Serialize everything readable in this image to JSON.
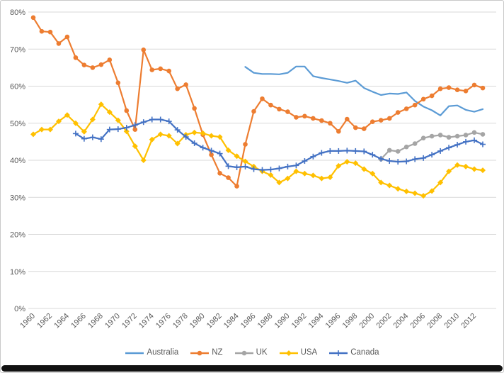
{
  "figure": {
    "background": "#ffffff",
    "border_color": "#c9c9c9",
    "bottom_bar_color": "#121212",
    "gridline_color": "#d9d9d9",
    "tick_label_color": "#595959"
  },
  "chart_data": {
    "type": "line",
    "title": "",
    "xlabel": "",
    "ylabel": "",
    "ylim": [
      0,
      80
    ],
    "y_tick_step": 10,
    "y_tick_labels": [
      "0%",
      "10%",
      "20%",
      "30%",
      "40%",
      "50%",
      "60%",
      "70%",
      "80%"
    ],
    "x_range": [
      1960,
      2013
    ],
    "x_tick_labels": [
      "1960",
      "1962",
      "1964",
      "1966",
      "1968",
      "1970",
      "1972",
      "1974",
      "1976",
      "1978",
      "1980",
      "1982",
      "1984",
      "1986",
      "1988",
      "1990",
      "1992",
      "1994",
      "1996",
      "1998",
      "2000",
      "2002",
      "2004",
      "2006",
      "2008",
      "2010",
      "2012"
    ],
    "grid": true,
    "legend_position": "bottom",
    "series": [
      {
        "name": "Australia",
        "color": "#5B9BD5",
        "marker": "none",
        "start_year": 1985,
        "values": [
          65.2,
          63.6,
          63.3,
          63.3,
          63.2,
          63.6,
          65.3,
          65.3,
          62.7,
          62.2,
          61.8,
          61.4,
          60.9,
          61.5,
          59.5,
          58.5,
          57.6,
          58.0,
          57.9,
          58.3,
          56.0,
          54.5,
          53.5,
          52.1,
          54.6,
          54.8,
          53.6,
          53.1,
          53.8
        ]
      },
      {
        "name": "NZ",
        "color": "#ED7D31",
        "marker": "circle",
        "start_year": 1960,
        "values": [
          78.5,
          74.8,
          74.6,
          71.5,
          73.3,
          67.7,
          65.7,
          65.0,
          65.8,
          67.1,
          60.9,
          53.4,
          48.3,
          69.8,
          64.4,
          64.7,
          64.1,
          59.3,
          60.4,
          54.0,
          46.9,
          41.5,
          36.5,
          35.3,
          33.0,
          44.3,
          53.2,
          56.6,
          54.9,
          53.8,
          53.1,
          51.6,
          51.9,
          51.3,
          50.7,
          50.0,
          47.8,
          51.1,
          48.8,
          48.5,
          50.4,
          50.8,
          51.3,
          52.9,
          53.9,
          54.9,
          56.5,
          57.4,
          59.3,
          59.6,
          59.0,
          58.7,
          60.3,
          59.5
        ]
      },
      {
        "name": "UK",
        "color": "#A5A5A5",
        "marker": "circle",
        "start_year": 2001,
        "values": [
          40.3,
          42.7,
          42.4,
          43.6,
          44.5,
          46.0,
          46.5,
          46.8,
          46.2,
          46.5,
          46.8,
          47.5,
          47.0
        ]
      },
      {
        "name": "USA",
        "color": "#FFC000",
        "marker": "diamond",
        "start_year": 1960,
        "values": [
          47.0,
          48.3,
          48.3,
          50.5,
          52.2,
          50.0,
          47.7,
          51.0,
          55.1,
          53.0,
          50.8,
          47.8,
          43.8,
          40.0,
          45.6,
          47.0,
          46.6,
          44.5,
          46.9,
          47.5,
          47.3,
          46.6,
          46.3,
          42.7,
          41.1,
          39.7,
          38.3,
          37.0,
          36.0,
          34.0,
          35.1,
          37.0,
          36.4,
          35.9,
          35.1,
          35.4,
          38.5,
          39.6,
          39.2,
          37.6,
          36.4,
          34.0,
          33.2,
          32.3,
          31.6,
          31.1,
          30.4,
          31.7,
          34.0,
          37.0,
          38.7,
          38.3,
          37.6,
          37.3
        ]
      },
      {
        "name": "Canada",
        "color": "#4472C4",
        "marker": "plus",
        "start_year": 1965,
        "values": [
          47.2,
          45.8,
          46.2,
          45.7,
          48.3,
          48.4,
          48.8,
          49.5,
          50.3,
          51.0,
          51.0,
          50.5,
          48.2,
          46.3,
          44.6,
          43.4,
          42.6,
          41.8,
          38.4,
          38.1,
          38.3,
          37.6,
          37.4,
          37.5,
          37.8,
          38.3,
          38.6,
          39.8,
          41.0,
          42.0,
          42.5,
          42.5,
          42.6,
          42.5,
          42.4,
          41.5,
          40.4,
          39.8,
          39.6,
          39.7,
          40.3,
          40.6,
          41.5,
          42.5,
          43.4,
          44.2,
          45.0,
          45.4,
          44.3
        ]
      }
    ]
  }
}
